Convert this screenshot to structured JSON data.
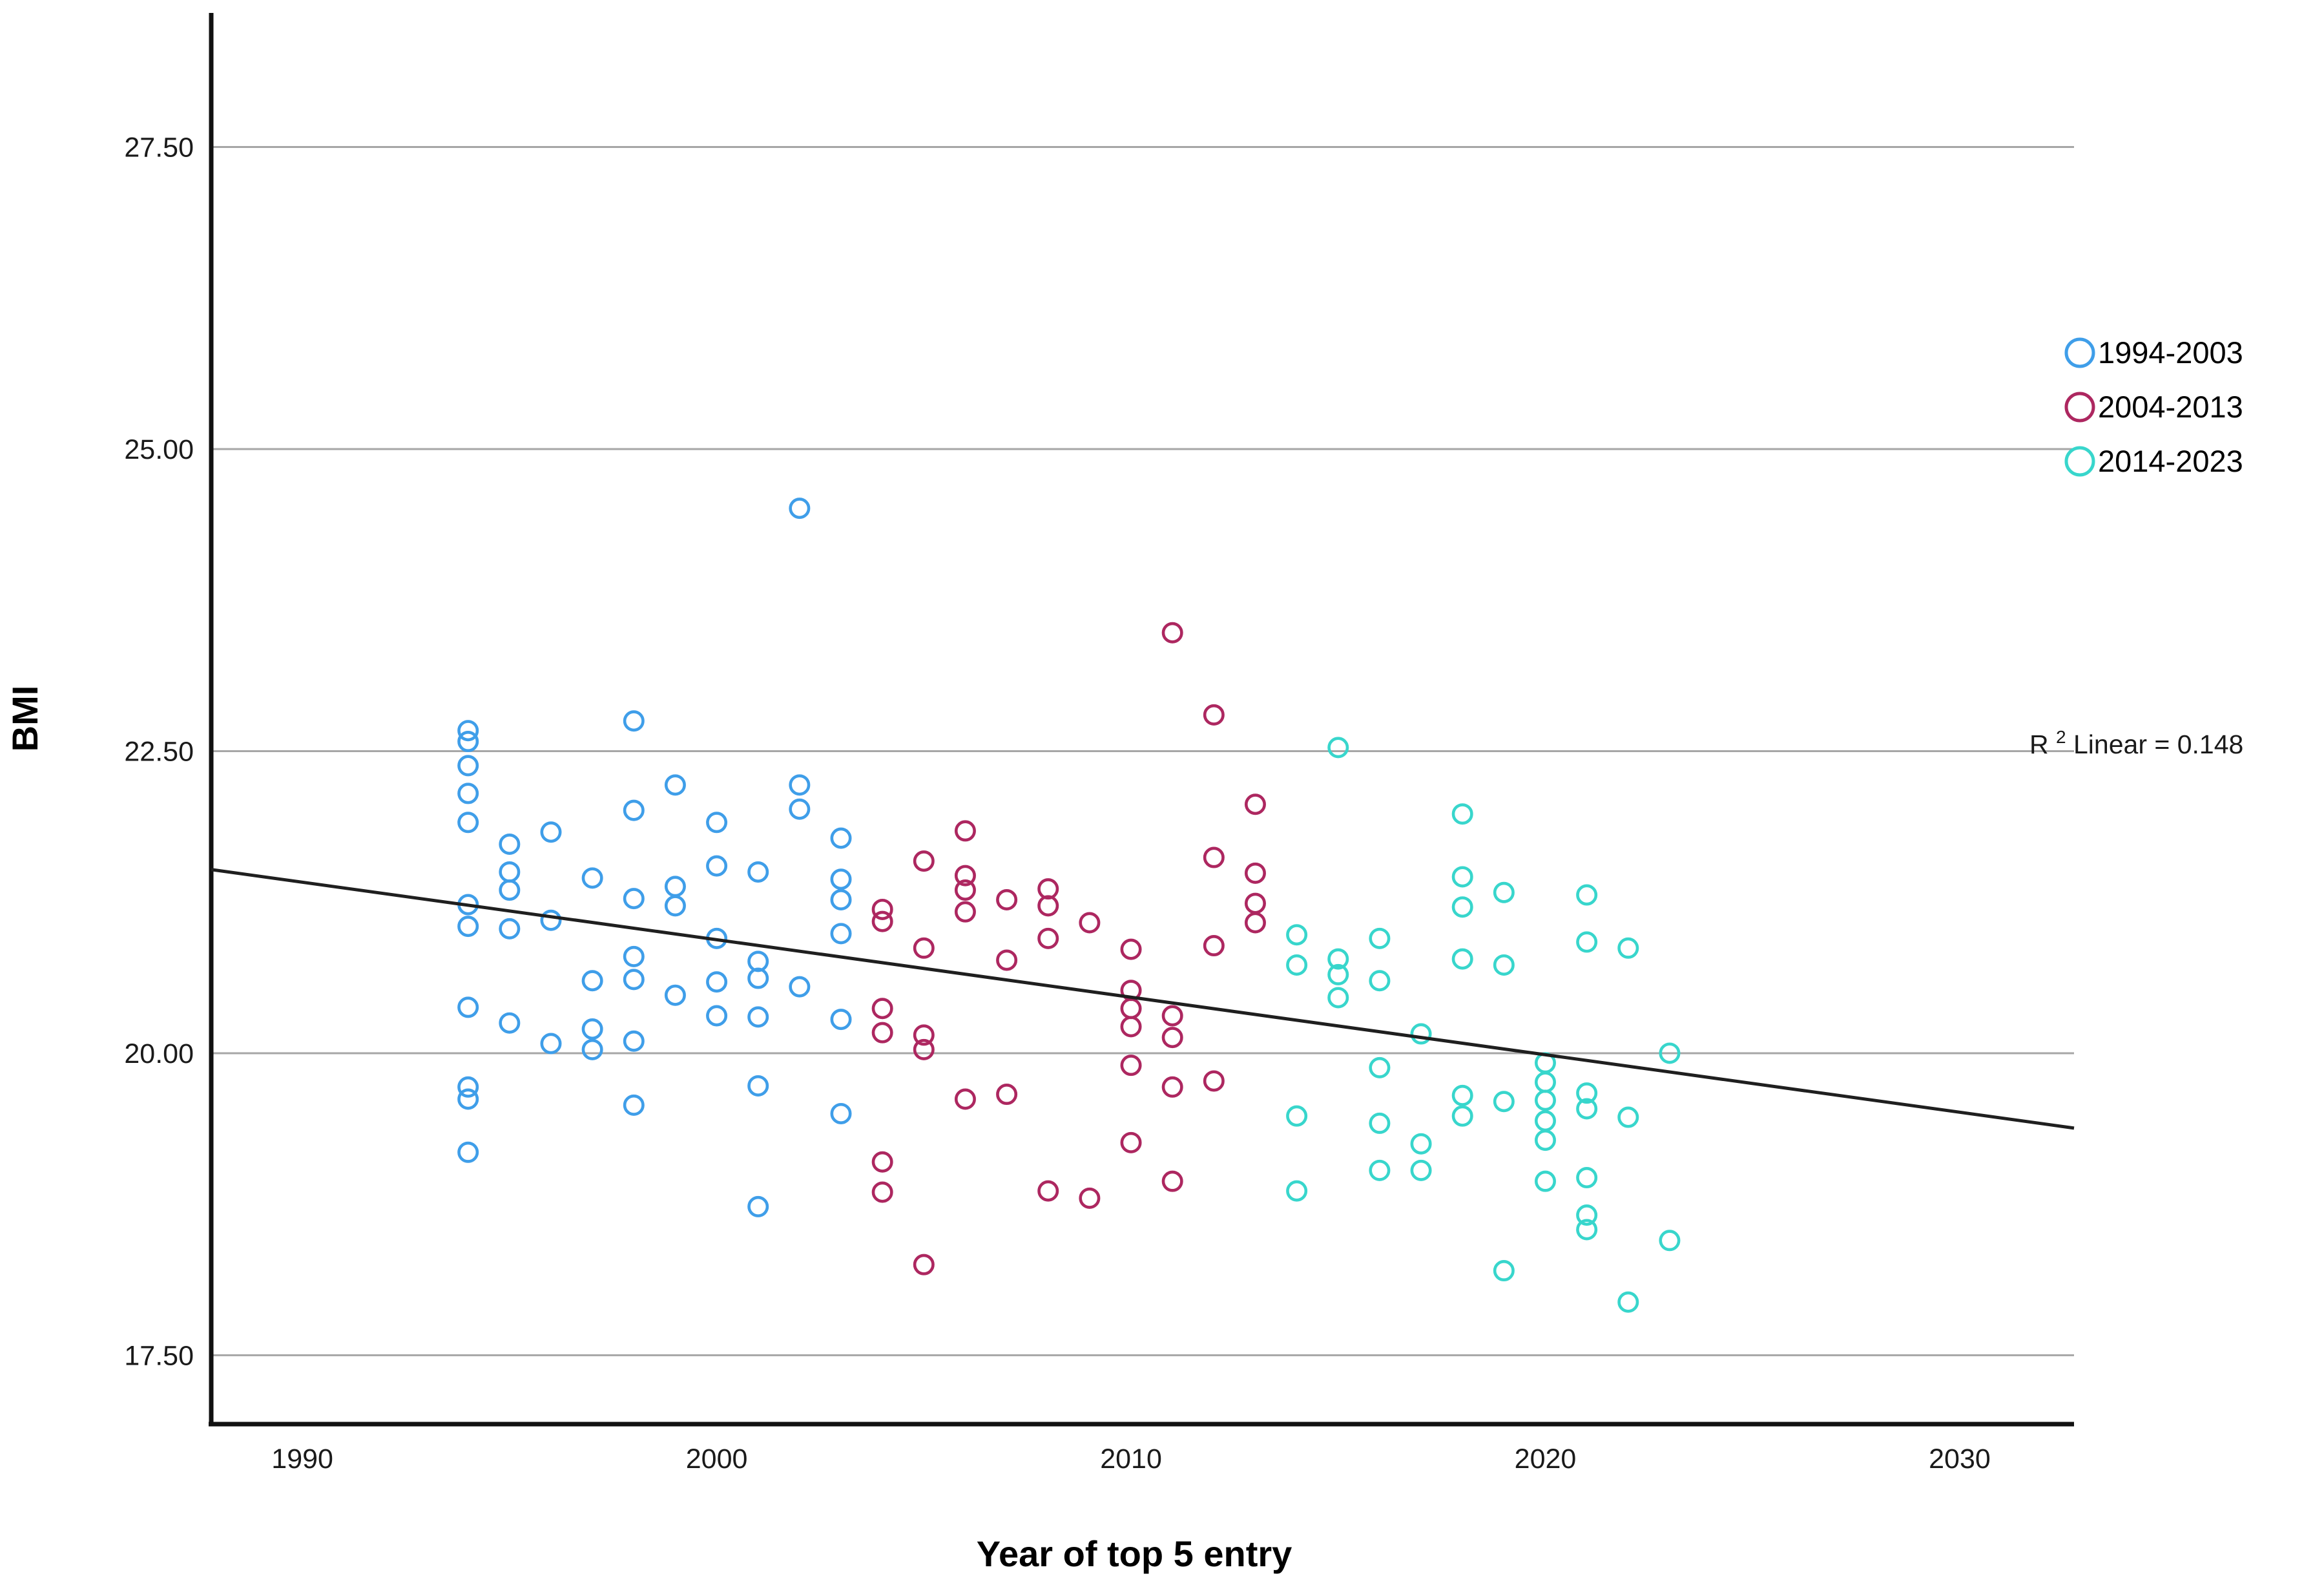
{
  "chart_data": {
    "type": "scatter",
    "title": "",
    "xlabel": "Year of top 5 entry",
    "ylabel": "BMI",
    "x_ticks": [
      {
        "value": 1990,
        "label": "1990"
      },
      {
        "value": 2000,
        "label": "2000"
      },
      {
        "value": 2010,
        "label": "2010"
      },
      {
        "value": 2020,
        "label": "2020"
      },
      {
        "value": 2030,
        "label": "2030"
      }
    ],
    "y_ticks": [
      {
        "value": 27.5,
        "label": "27.50"
      },
      {
        "value": 25.0,
        "label": "25.00"
      },
      {
        "value": 22.5,
        "label": "22.50"
      },
      {
        "value": 20.0,
        "label": "20.00"
      },
      {
        "value": 17.5,
        "label": "17.50"
      }
    ],
    "xlim": [
      1987.8,
      2032.76
    ],
    "ylim": [
      16.93,
      28.61
    ],
    "grid": "horizontal-only",
    "legend_position": "right",
    "legend": {
      "entries": [
        {
          "label": "1994-2003",
          "color": "#3f9ee9"
        },
        {
          "label": "2004-2013",
          "color": "#ad2760"
        },
        {
          "label": "2014-2023",
          "color": "#38d6cc"
        }
      ]
    },
    "annotation": {
      "base": "R",
      "sup": "2",
      "rest": " Linear = 0.148",
      "r_squared": 0.148
    },
    "fit_line": {
      "x1": 1987.8,
      "y1": 21.52,
      "x2": 2032.76,
      "y2": 19.38
    },
    "series": [
      {
        "name": "1994-2003",
        "color": "#3f9ee9",
        "points": [
          [
            1994,
            22.67
          ],
          [
            1994,
            22.58
          ],
          [
            1994,
            22.38
          ],
          [
            1994,
            22.15
          ],
          [
            1994,
            21.91
          ],
          [
            1994,
            21.23
          ],
          [
            1994,
            21.05
          ],
          [
            1994,
            20.38
          ],
          [
            1994,
            19.72
          ],
          [
            1994,
            19.62
          ],
          [
            1994,
            19.18
          ],
          [
            1995,
            21.73
          ],
          [
            1995,
            21.5
          ],
          [
            1995,
            21.35
          ],
          [
            1995,
            21.03
          ],
          [
            1995,
            20.25
          ],
          [
            1996,
            21.83
          ],
          [
            1996,
            21.1
          ],
          [
            1996,
            20.08
          ],
          [
            1997,
            21.45
          ],
          [
            1997,
            20.6
          ],
          [
            1997,
            20.2
          ],
          [
            1997,
            20.03
          ],
          [
            1998,
            22.75
          ],
          [
            1998,
            22.01
          ],
          [
            1998,
            21.28
          ],
          [
            1998,
            20.8
          ],
          [
            1998,
            20.61
          ],
          [
            1998,
            20.1
          ],
          [
            1998,
            19.57
          ],
          [
            1999,
            22.22
          ],
          [
            1999,
            21.38
          ],
          [
            1999,
            21.22
          ],
          [
            1999,
            20.48
          ],
          [
            2000,
            21.91
          ],
          [
            2000,
            21.55
          ],
          [
            2000,
            20.95
          ],
          [
            2000,
            20.59
          ],
          [
            2000,
            20.31
          ],
          [
            2001,
            21.5
          ],
          [
            2001,
            20.76
          ],
          [
            2001,
            20.62
          ],
          [
            2001,
            20.3
          ],
          [
            2001,
            19.73
          ],
          [
            2001,
            18.73
          ],
          [
            2002,
            24.51
          ],
          [
            2002,
            22.22
          ],
          [
            2002,
            22.02
          ],
          [
            2002,
            20.55
          ],
          [
            2003,
            21.78
          ],
          [
            2003,
            21.44
          ],
          [
            2003,
            21.27
          ],
          [
            2003,
            20.99
          ],
          [
            2003,
            20.28
          ],
          [
            2003,
            19.5
          ]
        ]
      },
      {
        "name": "2004-2013",
        "color": "#ad2760",
        "points": [
          [
            2004,
            21.19
          ],
          [
            2004,
            21.09
          ],
          [
            2004,
            20.37
          ],
          [
            2004,
            20.17
          ],
          [
            2004,
            19.1
          ],
          [
            2004,
            18.85
          ],
          [
            2005,
            21.59
          ],
          [
            2005,
            20.87
          ],
          [
            2005,
            20.15
          ],
          [
            2005,
            20.03
          ],
          [
            2005,
            18.25
          ],
          [
            2006,
            21.84
          ],
          [
            2006,
            21.47
          ],
          [
            2006,
            21.35
          ],
          [
            2006,
            21.17
          ],
          [
            2006,
            19.62
          ],
          [
            2007,
            21.27
          ],
          [
            2007,
            20.77
          ],
          [
            2007,
            19.66
          ],
          [
            2008,
            21.36
          ],
          [
            2008,
            21.22
          ],
          [
            2008,
            20.95
          ],
          [
            2008,
            18.86
          ],
          [
            2009,
            21.08
          ],
          [
            2009,
            18.8
          ],
          [
            2010,
            20.86
          ],
          [
            2010,
            20.52
          ],
          [
            2010,
            20.37
          ],
          [
            2010,
            20.22
          ],
          [
            2010,
            19.9
          ],
          [
            2010,
            19.26
          ],
          [
            2011,
            23.48
          ],
          [
            2011,
            20.31
          ],
          [
            2011,
            20.13
          ],
          [
            2011,
            19.72
          ],
          [
            2011,
            18.94
          ],
          [
            2012,
            22.8
          ],
          [
            2012,
            21.62
          ],
          [
            2012,
            20.89
          ],
          [
            2012,
            19.77
          ],
          [
            2013,
            22.06
          ],
          [
            2013,
            21.49
          ],
          [
            2013,
            21.24
          ],
          [
            2013,
            21.08
          ]
        ]
      },
      {
        "name": "2014-2023",
        "color": "#38d6cc",
        "points": [
          [
            2014,
            20.98
          ],
          [
            2014,
            20.73
          ],
          [
            2014,
            19.48
          ],
          [
            2014,
            18.86
          ],
          [
            2015,
            22.53
          ],
          [
            2015,
            20.78
          ],
          [
            2015,
            20.65
          ],
          [
            2015,
            20.46
          ],
          [
            2016,
            20.95
          ],
          [
            2016,
            20.6
          ],
          [
            2016,
            19.88
          ],
          [
            2016,
            19.42
          ],
          [
            2016,
            19.03
          ],
          [
            2017,
            20.16
          ],
          [
            2017,
            19.25
          ],
          [
            2017,
            19.03
          ],
          [
            2018,
            21.98
          ],
          [
            2018,
            21.46
          ],
          [
            2018,
            21.21
          ],
          [
            2018,
            20.78
          ],
          [
            2018,
            19.65
          ],
          [
            2018,
            19.48
          ],
          [
            2019,
            21.33
          ],
          [
            2019,
            20.73
          ],
          [
            2019,
            19.6
          ],
          [
            2019,
            18.2
          ],
          [
            2020,
            19.92
          ],
          [
            2020,
            19.76
          ],
          [
            2020,
            19.61
          ],
          [
            2020,
            19.44
          ],
          [
            2020,
            19.28
          ],
          [
            2020,
            18.94
          ],
          [
            2021,
            21.31
          ],
          [
            2021,
            20.92
          ],
          [
            2021,
            19.67
          ],
          [
            2021,
            19.54
          ],
          [
            2021,
            18.97
          ],
          [
            2021,
            18.66
          ],
          [
            2021,
            18.54
          ],
          [
            2022,
            20.87
          ],
          [
            2022,
            19.47
          ],
          [
            2022,
            17.94
          ],
          [
            2023,
            20.0
          ],
          [
            2023,
            18.45
          ]
        ]
      }
    ]
  }
}
